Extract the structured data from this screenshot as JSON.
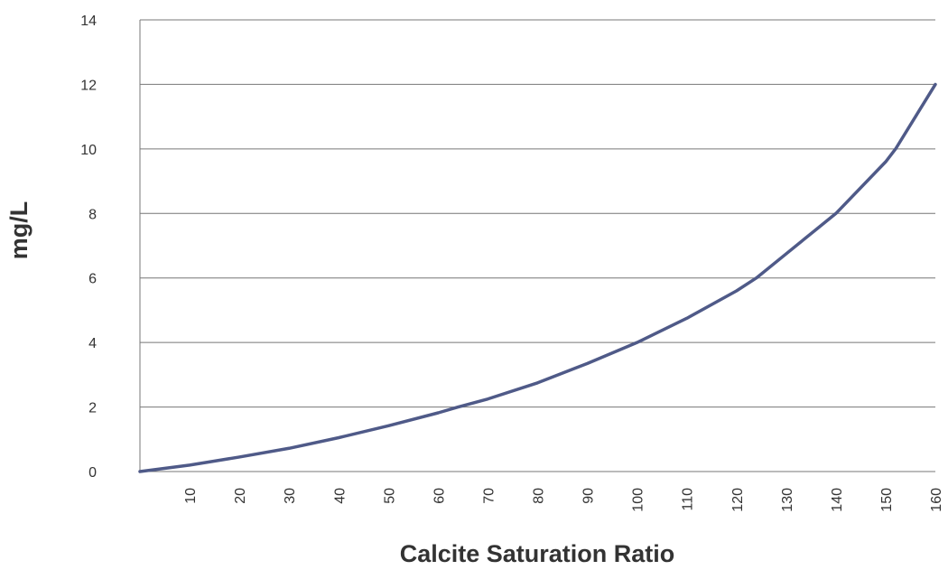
{
  "chart_data": {
    "type": "line",
    "x_label": "Calcite Saturation Ratio",
    "y_label": "mg/L",
    "x": [
      0,
      10,
      20,
      30,
      40,
      50,
      60,
      64,
      70,
      80,
      90,
      100,
      110,
      120,
      124,
      130,
      140,
      150,
      152,
      160
    ],
    "series": [
      {
        "name": "mg/L",
        "color": "#4f5a88",
        "values": [
          0,
          0.2,
          0.45,
          0.72,
          1.05,
          1.42,
          1.82,
          2.0,
          2.25,
          2.75,
          3.35,
          4.0,
          4.75,
          5.6,
          6.0,
          6.75,
          8.0,
          9.6,
          10.0,
          12.0
        ]
      }
    ],
    "xlim": [
      0,
      160
    ],
    "xticks": [
      10,
      20,
      30,
      40,
      50,
      60,
      70,
      80,
      90,
      100,
      110,
      120,
      130,
      140,
      150,
      160
    ],
    "ylim": [
      0,
      14
    ],
    "yticks": [
      0,
      2,
      4,
      6,
      8,
      10,
      12,
      14
    ],
    "grid": true
  }
}
